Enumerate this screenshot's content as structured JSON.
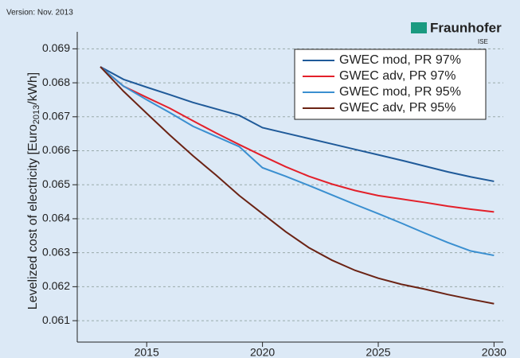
{
  "chart_data": {
    "type": "line",
    "version": "Version: Nov. 2013",
    "logo": "Fraunhofer",
    "logo_sub": "ISE",
    "ylabel": [
      "Levelized cost of electricity [Euro",
      "2013",
      "/kWh]"
    ],
    "x": [
      2013,
      2014,
      2015,
      2016,
      2017,
      2018,
      2019,
      2020,
      2021,
      2022,
      2023,
      2024,
      2025,
      2026,
      2027,
      2028,
      2029,
      2030
    ],
    "series": [
      {
        "name": "GWEC mod, PR 97%",
        "color": "#1f5a99",
        "values": [
          0.06847,
          0.0681,
          0.06787,
          0.06765,
          0.06742,
          0.06723,
          0.06704,
          0.06668,
          0.06652,
          0.06636,
          0.0662,
          0.06604,
          0.06588,
          0.06572,
          0.06555,
          0.06538,
          0.06523,
          0.0651
        ]
      },
      {
        "name": "GWEC adv, PR 97%",
        "color": "#e3202a",
        "values": [
          0.06847,
          0.0679,
          0.06757,
          0.06725,
          0.06688,
          0.06652,
          0.06618,
          0.06585,
          0.06553,
          0.06525,
          0.06502,
          0.06483,
          0.06468,
          0.06458,
          0.06448,
          0.06437,
          0.06428,
          0.0642
        ]
      },
      {
        "name": "GWEC mod, PR 95%",
        "color": "#3a8fd0",
        "values": [
          0.06847,
          0.0679,
          0.0675,
          0.06712,
          0.06672,
          0.06642,
          0.06612,
          0.0655,
          0.06525,
          0.06498,
          0.0647,
          0.06442,
          0.06415,
          0.06387,
          0.06358,
          0.0633,
          0.06305,
          0.06292
        ]
      },
      {
        "name": "GWEC adv, PR 95%",
        "color": "#6b2314",
        "values": [
          0.06847,
          0.06775,
          0.0671,
          0.06646,
          0.06585,
          0.06528,
          0.06468,
          0.06415,
          0.06362,
          0.06315,
          0.06278,
          0.06248,
          0.06225,
          0.06207,
          0.06193,
          0.06177,
          0.06163,
          0.0615
        ]
      }
    ],
    "xlim": [
      2012,
      2030.4
    ],
    "xticks": [
      2015,
      2020,
      2025,
      2030
    ],
    "ylim": [
      0.06037,
      0.0695
    ],
    "yticks": [
      0.061,
      0.062,
      0.063,
      0.064,
      0.065,
      0.066,
      0.067,
      0.068,
      0.069
    ],
    "grid": true
  }
}
